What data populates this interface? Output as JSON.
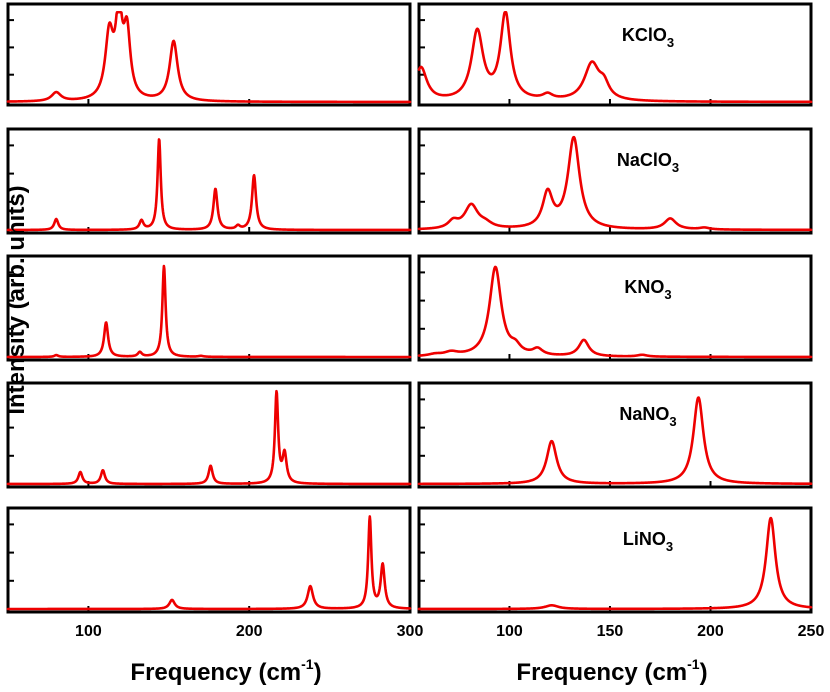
{
  "y_label": "Intensity (arb. units)",
  "x_labels": {
    "left": {
      "main": "Frequency (cm",
      "sup": "-1",
      "close": ")"
    },
    "right": {
      "main": "Frequency (cm",
      "sup": "-1",
      "close": ")"
    }
  },
  "chart_data": {
    "type": "line",
    "ylabel": "Intensity (arb. units)",
    "yticks_shown": false,
    "left_column": {
      "xlabel": "Frequency (cm-1)",
      "xlim": [
        50,
        300
      ],
      "xticks": [
        100,
        200,
        300
      ],
      "panels": [
        {
          "id": "KClO3",
          "peaks": [
            [
              80,
              3.5,
              0.1
            ],
            [
              113,
              3,
              0.72
            ],
            [
              119,
              2.5,
              0.92
            ],
            [
              124,
              2.5,
              0.72
            ],
            [
              153,
              3,
              0.68
            ]
          ]
        },
        {
          "id": "NaClO3",
          "peaks": [
            [
              80,
              1.5,
              0.12
            ],
            [
              133,
              1.5,
              0.1
            ],
            [
              144,
              1.2,
              1.0
            ],
            [
              179,
              1.5,
              0.45
            ],
            [
              193,
              1.5,
              0.04
            ],
            [
              203,
              1.5,
              0.6
            ]
          ]
        },
        {
          "id": "KNO3",
          "peaks": [
            [
              80,
              1.5,
              0.02
            ],
            [
              111,
              1.5,
              0.38
            ],
            [
              132,
              1.5,
              0.05
            ],
            [
              147,
              1.2,
              1.0
            ],
            [
              170,
              2.0,
              0.01
            ]
          ]
        },
        {
          "id": "NaNO3",
          "peaks": [
            [
              95,
              1.5,
              0.13
            ],
            [
              109,
              1.5,
              0.15
            ],
            [
              176,
              1.5,
              0.2
            ],
            [
              217,
              1.2,
              1.0
            ],
            [
              222,
              1.5,
              0.32
            ]
          ]
        },
        {
          "id": "LiNO3",
          "peaks": [
            [
              152,
              2,
              0.1
            ],
            [
              238,
              2,
              0.25
            ],
            [
              275,
              1.2,
              1.0
            ],
            [
              283,
              1.5,
              0.48
            ]
          ]
        }
      ]
    },
    "right_column": {
      "xlabel": "Frequency (cm-1)",
      "xlim": [
        55,
        250
      ],
      "xticks": [
        100,
        150,
        200,
        250
      ],
      "panels": [
        {
          "id": "KClO3",
          "label": {
            "base": "KClO",
            "sub": "3"
          },
          "peaks": [
            [
              56,
              3.5,
              0.38
            ],
            [
              84,
              3.5,
              0.78
            ],
            [
              98,
              3,
              0.98
            ],
            [
              119,
              3,
              0.06
            ],
            [
              141,
              4.5,
              0.42
            ],
            [
              147,
              3,
              0.15
            ]
          ]
        },
        {
          "id": "NaClO3",
          "label": {
            "base": "NaClO",
            "sub": "3"
          },
          "peaks": [
            [
              72,
              3,
              0.08
            ],
            [
              81,
              4,
              0.26
            ],
            [
              88,
              4,
              0.05
            ],
            [
              119,
              3,
              0.38
            ],
            [
              132,
              3.5,
              1.0
            ],
            [
              180,
              3.5,
              0.12
            ],
            [
              197,
              3,
              0.02
            ]
          ]
        },
        {
          "id": "KNO3",
          "label": {
            "base": "KNO",
            "sub": "3"
          },
          "peaks": [
            [
              63,
              4,
              0.02
            ],
            [
              71,
              4,
              0.04
            ],
            [
              93,
              3.5,
              0.98
            ],
            [
              103,
              3,
              0.08
            ],
            [
              114,
              3,
              0.07
            ],
            [
              137,
              3,
              0.18
            ],
            [
              166,
              3,
              0.02
            ]
          ]
        },
        {
          "id": "NaNO3",
          "label": {
            "base": "NaNO",
            "sub": "3"
          },
          "peaks": [
            [
              121,
              3,
              0.47
            ],
            [
              194,
              3,
              0.95
            ]
          ]
        },
        {
          "id": "LiNO3",
          "label": {
            "base": "LiNO",
            "sub": "3"
          },
          "peaks": [
            [
              121,
              4,
              0.04
            ],
            [
              230,
              2.8,
              1.0
            ]
          ]
        }
      ]
    }
  }
}
